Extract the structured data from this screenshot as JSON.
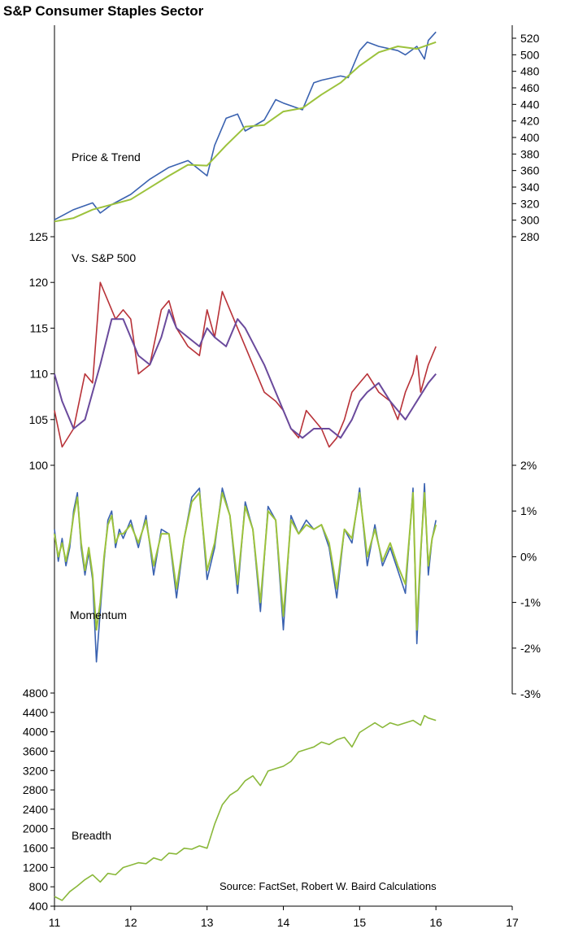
{
  "title": "S&P Consumer Staples Sector",
  "source": "Source: FactSet, Robert W. Baird Calculations",
  "x_axis": {
    "ticks": [
      "11",
      "12",
      "13",
      "14",
      "15",
      "16",
      "17"
    ],
    "range": [
      11,
      17
    ]
  },
  "colors": {
    "price": "#3a62b0",
    "trend": "#9cc23c",
    "relative": "#b83238",
    "relative_avg": "#6a4a9c",
    "momentum_a": "#3a62b0",
    "momentum_b": "#9cc23c",
    "breadth": "#8ab83a"
  },
  "chart_data": [
    {
      "type": "line",
      "label": "Price & Trend",
      "y_axis": {
        "side": "right",
        "ylim": [
          280,
          530
        ],
        "ticks": [
          "280",
          "300",
          "320",
          "340",
          "360",
          "380",
          "400",
          "420",
          "440",
          "460",
          "480",
          "500",
          "520"
        ]
      },
      "series": [
        {
          "role": "price",
          "x": [
            11.0,
            11.25,
            11.5,
            11.6,
            11.75,
            12.0,
            12.25,
            12.5,
            12.75,
            13.0,
            13.1,
            13.25,
            13.4,
            13.5,
            13.75,
            13.9,
            14.0,
            14.25,
            14.4,
            14.5,
            14.75,
            14.85,
            15.0,
            15.1,
            15.25,
            15.5,
            15.6,
            15.75,
            15.85,
            15.9,
            16.0
          ],
          "y": [
            300,
            312,
            320,
            308,
            318,
            330,
            348,
            362,
            370,
            352,
            388,
            420,
            425,
            405,
            418,
            442,
            438,
            430,
            462,
            465,
            470,
            468,
            500,
            510,
            505,
            500,
            495,
            505,
            490,
            512,
            522
          ]
        },
        {
          "role": "trend",
          "x": [
            11.0,
            11.25,
            11.5,
            11.75,
            12.0,
            12.25,
            12.5,
            12.75,
            13.0,
            13.25,
            13.5,
            13.75,
            14.0,
            14.25,
            14.5,
            14.75,
            15.0,
            15.25,
            15.5,
            15.75,
            16.0
          ],
          "y": [
            298,
            302,
            312,
            318,
            324,
            338,
            352,
            365,
            364,
            388,
            410,
            412,
            428,
            432,
            448,
            462,
            482,
            498,
            505,
            502,
            510
          ]
        }
      ]
    },
    {
      "type": "line",
      "label": "Vs. S&P 500",
      "y_axis": {
        "side": "left",
        "ylim": [
          100,
          125
        ],
        "ticks": [
          "100",
          "105",
          "110",
          "115",
          "120",
          "125"
        ]
      },
      "series": [
        {
          "role": "relative",
          "x": [
            11.0,
            11.1,
            11.25,
            11.4,
            11.5,
            11.6,
            11.7,
            11.8,
            11.9,
            12.0,
            12.1,
            12.25,
            12.4,
            12.5,
            12.6,
            12.75,
            12.9,
            13.0,
            13.1,
            13.2,
            13.3,
            13.4,
            13.5,
            13.6,
            13.75,
            13.9,
            14.0,
            14.1,
            14.2,
            14.3,
            14.4,
            14.5,
            14.6,
            14.7,
            14.8,
            14.9,
            15.0,
            15.1,
            15.25,
            15.4,
            15.5,
            15.6,
            15.7,
            15.75,
            15.8,
            15.9,
            16.0
          ],
          "y": [
            106,
            102,
            104,
            110,
            109,
            120,
            118,
            116,
            117,
            116,
            110,
            111,
            117,
            118,
            115,
            113,
            112,
            117,
            114,
            119,
            117,
            115,
            113,
            111,
            108,
            107,
            106,
            104,
            103,
            106,
            105,
            104,
            102,
            103,
            105,
            108,
            109,
            110,
            108,
            107,
            105,
            108,
            110,
            112,
            108,
            111,
            113
          ]
        },
        {
          "role": "relative_avg",
          "x": [
            11.0,
            11.1,
            11.25,
            11.4,
            11.6,
            11.75,
            11.9,
            12.0,
            12.1,
            12.25,
            12.4,
            12.5,
            12.6,
            12.75,
            12.9,
            13.0,
            13.1,
            13.25,
            13.4,
            13.5,
            13.75,
            14.0,
            14.1,
            14.25,
            14.4,
            14.6,
            14.75,
            14.9,
            15.0,
            15.1,
            15.25,
            15.4,
            15.5,
            15.6,
            15.75,
            15.9,
            16.0
          ],
          "y": [
            110,
            107,
            104,
            105,
            111,
            116,
            116,
            114,
            112,
            111,
            114,
            117,
            115,
            114,
            113,
            115,
            114,
            113,
            116,
            115,
            111,
            106,
            104,
            103,
            104,
            104,
            103,
            105,
            107,
            108,
            109,
            107,
            106,
            105,
            107,
            109,
            110
          ]
        }
      ]
    },
    {
      "type": "line",
      "label": "Momentum",
      "y_axis": {
        "side": "right",
        "ylim": [
          -3,
          2
        ],
        "ticks": [
          "-3%",
          "-2%",
          "-1%",
          "0%",
          "1%",
          "2%"
        ]
      },
      "series": [
        {
          "role": "momentum_a",
          "x": [
            11.0,
            11.05,
            11.1,
            11.15,
            11.2,
            11.25,
            11.3,
            11.35,
            11.4,
            11.45,
            11.5,
            11.55,
            11.6,
            11.65,
            11.7,
            11.75,
            11.8,
            11.85,
            11.9,
            12.0,
            12.1,
            12.2,
            12.3,
            12.4,
            12.5,
            12.6,
            12.7,
            12.8,
            12.9,
            13.0,
            13.1,
            13.2,
            13.3,
            13.4,
            13.5,
            13.6,
            13.7,
            13.8,
            13.9,
            14.0,
            14.1,
            14.2,
            14.3,
            14.4,
            14.5,
            14.6,
            14.7,
            14.8,
            14.9,
            15.0,
            15.1,
            15.2,
            15.3,
            15.4,
            15.5,
            15.6,
            15.7,
            15.75,
            15.8,
            15.85,
            15.9,
            15.95,
            16.0
          ],
          "y": [
            0.6,
            -0.1,
            0.4,
            -0.2,
            0.2,
            1.0,
            1.4,
            0.2,
            -0.4,
            0.1,
            -0.5,
            -2.3,
            -1.2,
            -0.1,
            0.8,
            1.0,
            0.2,
            0.6,
            0.4,
            0.8,
            0.2,
            0.9,
            -0.4,
            0.6,
            0.5,
            -0.9,
            0.4,
            1.3,
            1.5,
            -0.5,
            0.2,
            1.5,
            0.9,
            -0.8,
            1.2,
            0.6,
            -1.2,
            1.1,
            0.8,
            -1.6,
            0.9,
            0.5,
            0.8,
            0.6,
            0.7,
            0.2,
            -0.9,
            0.6,
            0.3,
            1.5,
            -0.2,
            0.7,
            -0.2,
            0.2,
            -0.3,
            -0.8,
            1.5,
            -1.9,
            0.0,
            1.6,
            -0.4,
            0.4,
            0.8
          ]
        },
        {
          "role": "momentum_b",
          "x": [
            11.0,
            11.05,
            11.1,
            11.15,
            11.2,
            11.25,
            11.3,
            11.35,
            11.4,
            11.45,
            11.5,
            11.55,
            11.6,
            11.65,
            11.7,
            11.75,
            11.8,
            11.85,
            11.9,
            12.0,
            12.1,
            12.2,
            12.3,
            12.4,
            12.5,
            12.6,
            12.7,
            12.8,
            12.9,
            13.0,
            13.1,
            13.2,
            13.3,
            13.4,
            13.5,
            13.6,
            13.7,
            13.8,
            13.9,
            14.0,
            14.1,
            14.2,
            14.3,
            14.4,
            14.5,
            14.6,
            14.7,
            14.8,
            14.9,
            15.0,
            15.1,
            15.2,
            15.3,
            15.4,
            15.5,
            15.6,
            15.7,
            15.75,
            15.8,
            15.85,
            15.9,
            15.95,
            16.0
          ],
          "y": [
            0.5,
            0.0,
            0.3,
            -0.1,
            0.3,
            0.9,
            1.3,
            0.3,
            -0.3,
            0.2,
            -0.4,
            -1.6,
            -1.0,
            0.0,
            0.7,
            0.9,
            0.3,
            0.5,
            0.5,
            0.7,
            0.3,
            0.8,
            -0.2,
            0.5,
            0.5,
            -0.7,
            0.4,
            1.2,
            1.4,
            -0.3,
            0.3,
            1.4,
            0.9,
            -0.6,
            1.1,
            0.6,
            -1.0,
            1.0,
            0.8,
            -1.3,
            0.8,
            0.5,
            0.7,
            0.6,
            0.7,
            0.3,
            -0.7,
            0.6,
            0.4,
            1.4,
            0.0,
            0.6,
            -0.1,
            0.3,
            -0.2,
            -0.6,
            1.4,
            -1.6,
            0.1,
            1.4,
            -0.2,
            0.4,
            0.7
          ]
        }
      ]
    },
    {
      "type": "line",
      "label": "Breadth",
      "y_axis": {
        "side": "left",
        "ylim": [
          400,
          4800
        ],
        "ticks": [
          "400",
          "800",
          "1200",
          "1600",
          "2000",
          "2400",
          "2800",
          "3200",
          "3600",
          "4000",
          "4400",
          "4800"
        ]
      },
      "series": [
        {
          "role": "breadth",
          "x": [
            11.0,
            11.1,
            11.2,
            11.3,
            11.4,
            11.5,
            11.6,
            11.7,
            11.8,
            11.9,
            12.0,
            12.1,
            12.2,
            12.3,
            12.4,
            12.5,
            12.6,
            12.7,
            12.8,
            12.9,
            13.0,
            13.1,
            13.2,
            13.3,
            13.4,
            13.5,
            13.6,
            13.7,
            13.8,
            13.9,
            14.0,
            14.1,
            14.2,
            14.3,
            14.4,
            14.5,
            14.6,
            14.7,
            14.8,
            14.9,
            15.0,
            15.1,
            15.2,
            15.3,
            15.4,
            15.5,
            15.6,
            15.7,
            15.8,
            15.85,
            15.9,
            16.0
          ],
          "y": [
            600,
            520,
            700,
            820,
            950,
            1050,
            900,
            1080,
            1050,
            1200,
            1250,
            1300,
            1280,
            1400,
            1350,
            1500,
            1480,
            1600,
            1580,
            1650,
            1600,
            2100,
            2500,
            2700,
            2800,
            3000,
            3100,
            2900,
            3200,
            3250,
            3300,
            3400,
            3600,
            3650,
            3700,
            3800,
            3750,
            3850,
            3900,
            3700,
            4000,
            4100,
            4200,
            4100,
            4200,
            4150,
            4200,
            4250,
            4150,
            4350,
            4300,
            4250
          ]
        }
      ]
    }
  ]
}
